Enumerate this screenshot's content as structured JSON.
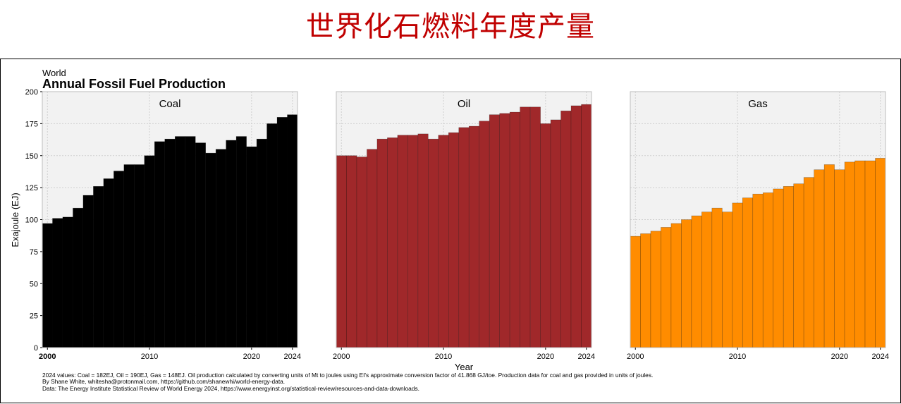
{
  "page_title": "世界化石燃料年度产量",
  "chart_data": {
    "type": "bar",
    "subtitle": "World",
    "title": "Annual Fossil Fuel Production",
    "xlabel": "Year",
    "ylabel": "Exajoule (EJ)",
    "ylim": [
      0,
      200
    ],
    "xlim": [
      1999.5,
      2024.5
    ],
    "yticks": [
      0,
      25,
      50,
      75,
      100,
      125,
      150,
      175,
      200
    ],
    "xticks": [
      2000,
      2010,
      2020,
      2024
    ],
    "grid": true,
    "years": [
      2000,
      2001,
      2002,
      2003,
      2004,
      2005,
      2006,
      2007,
      2008,
      2009,
      2010,
      2011,
      2012,
      2013,
      2014,
      2015,
      2016,
      2017,
      2018,
      2019,
      2020,
      2021,
      2022,
      2023,
      2024
    ],
    "series": [
      {
        "name": "Coal",
        "color": "#000000",
        "values": [
          97,
          101,
          102,
          109,
          119,
          126,
          132,
          138,
          143,
          143,
          150,
          161,
          163,
          165,
          165,
          160,
          152,
          155,
          162,
          165,
          157,
          163,
          175,
          180,
          182
        ]
      },
      {
        "name": "Oil",
        "color": "#a0282a",
        "values": [
          150,
          150,
          149,
          155,
          163,
          164,
          166,
          166,
          167,
          163,
          166,
          168,
          172,
          173,
          177,
          182,
          183,
          184,
          188,
          188,
          175,
          178,
          185,
          189,
          190
        ]
      },
      {
        "name": "Gas",
        "color": "#ff8c00",
        "values": [
          87,
          89,
          91,
          94,
          97,
          100,
          103,
          106,
          109,
          106,
          113,
          117,
          120,
          121,
          124,
          126,
          128,
          133,
          139,
          143,
          139,
          145,
          146,
          146,
          148
        ]
      }
    ],
    "footnotes": [
      "2024 values: Coal = 182EJ, Oil = 190EJ, Gas = 148EJ. Oil production calculated by converting units of Mt to joules using EI's approximate conversion factor of 41.868 GJ/toe. Production data for coal and gas provided in units of joules.",
      "By Shane White, whitesha@protonmail.com, https://github.com/shanewhi/world-energy-data.",
      "Data: The Energy Institute Statistical Review of World Energy 2024, https://www.energyinst.org/statistical-review/resources-and-data-downloads."
    ]
  }
}
